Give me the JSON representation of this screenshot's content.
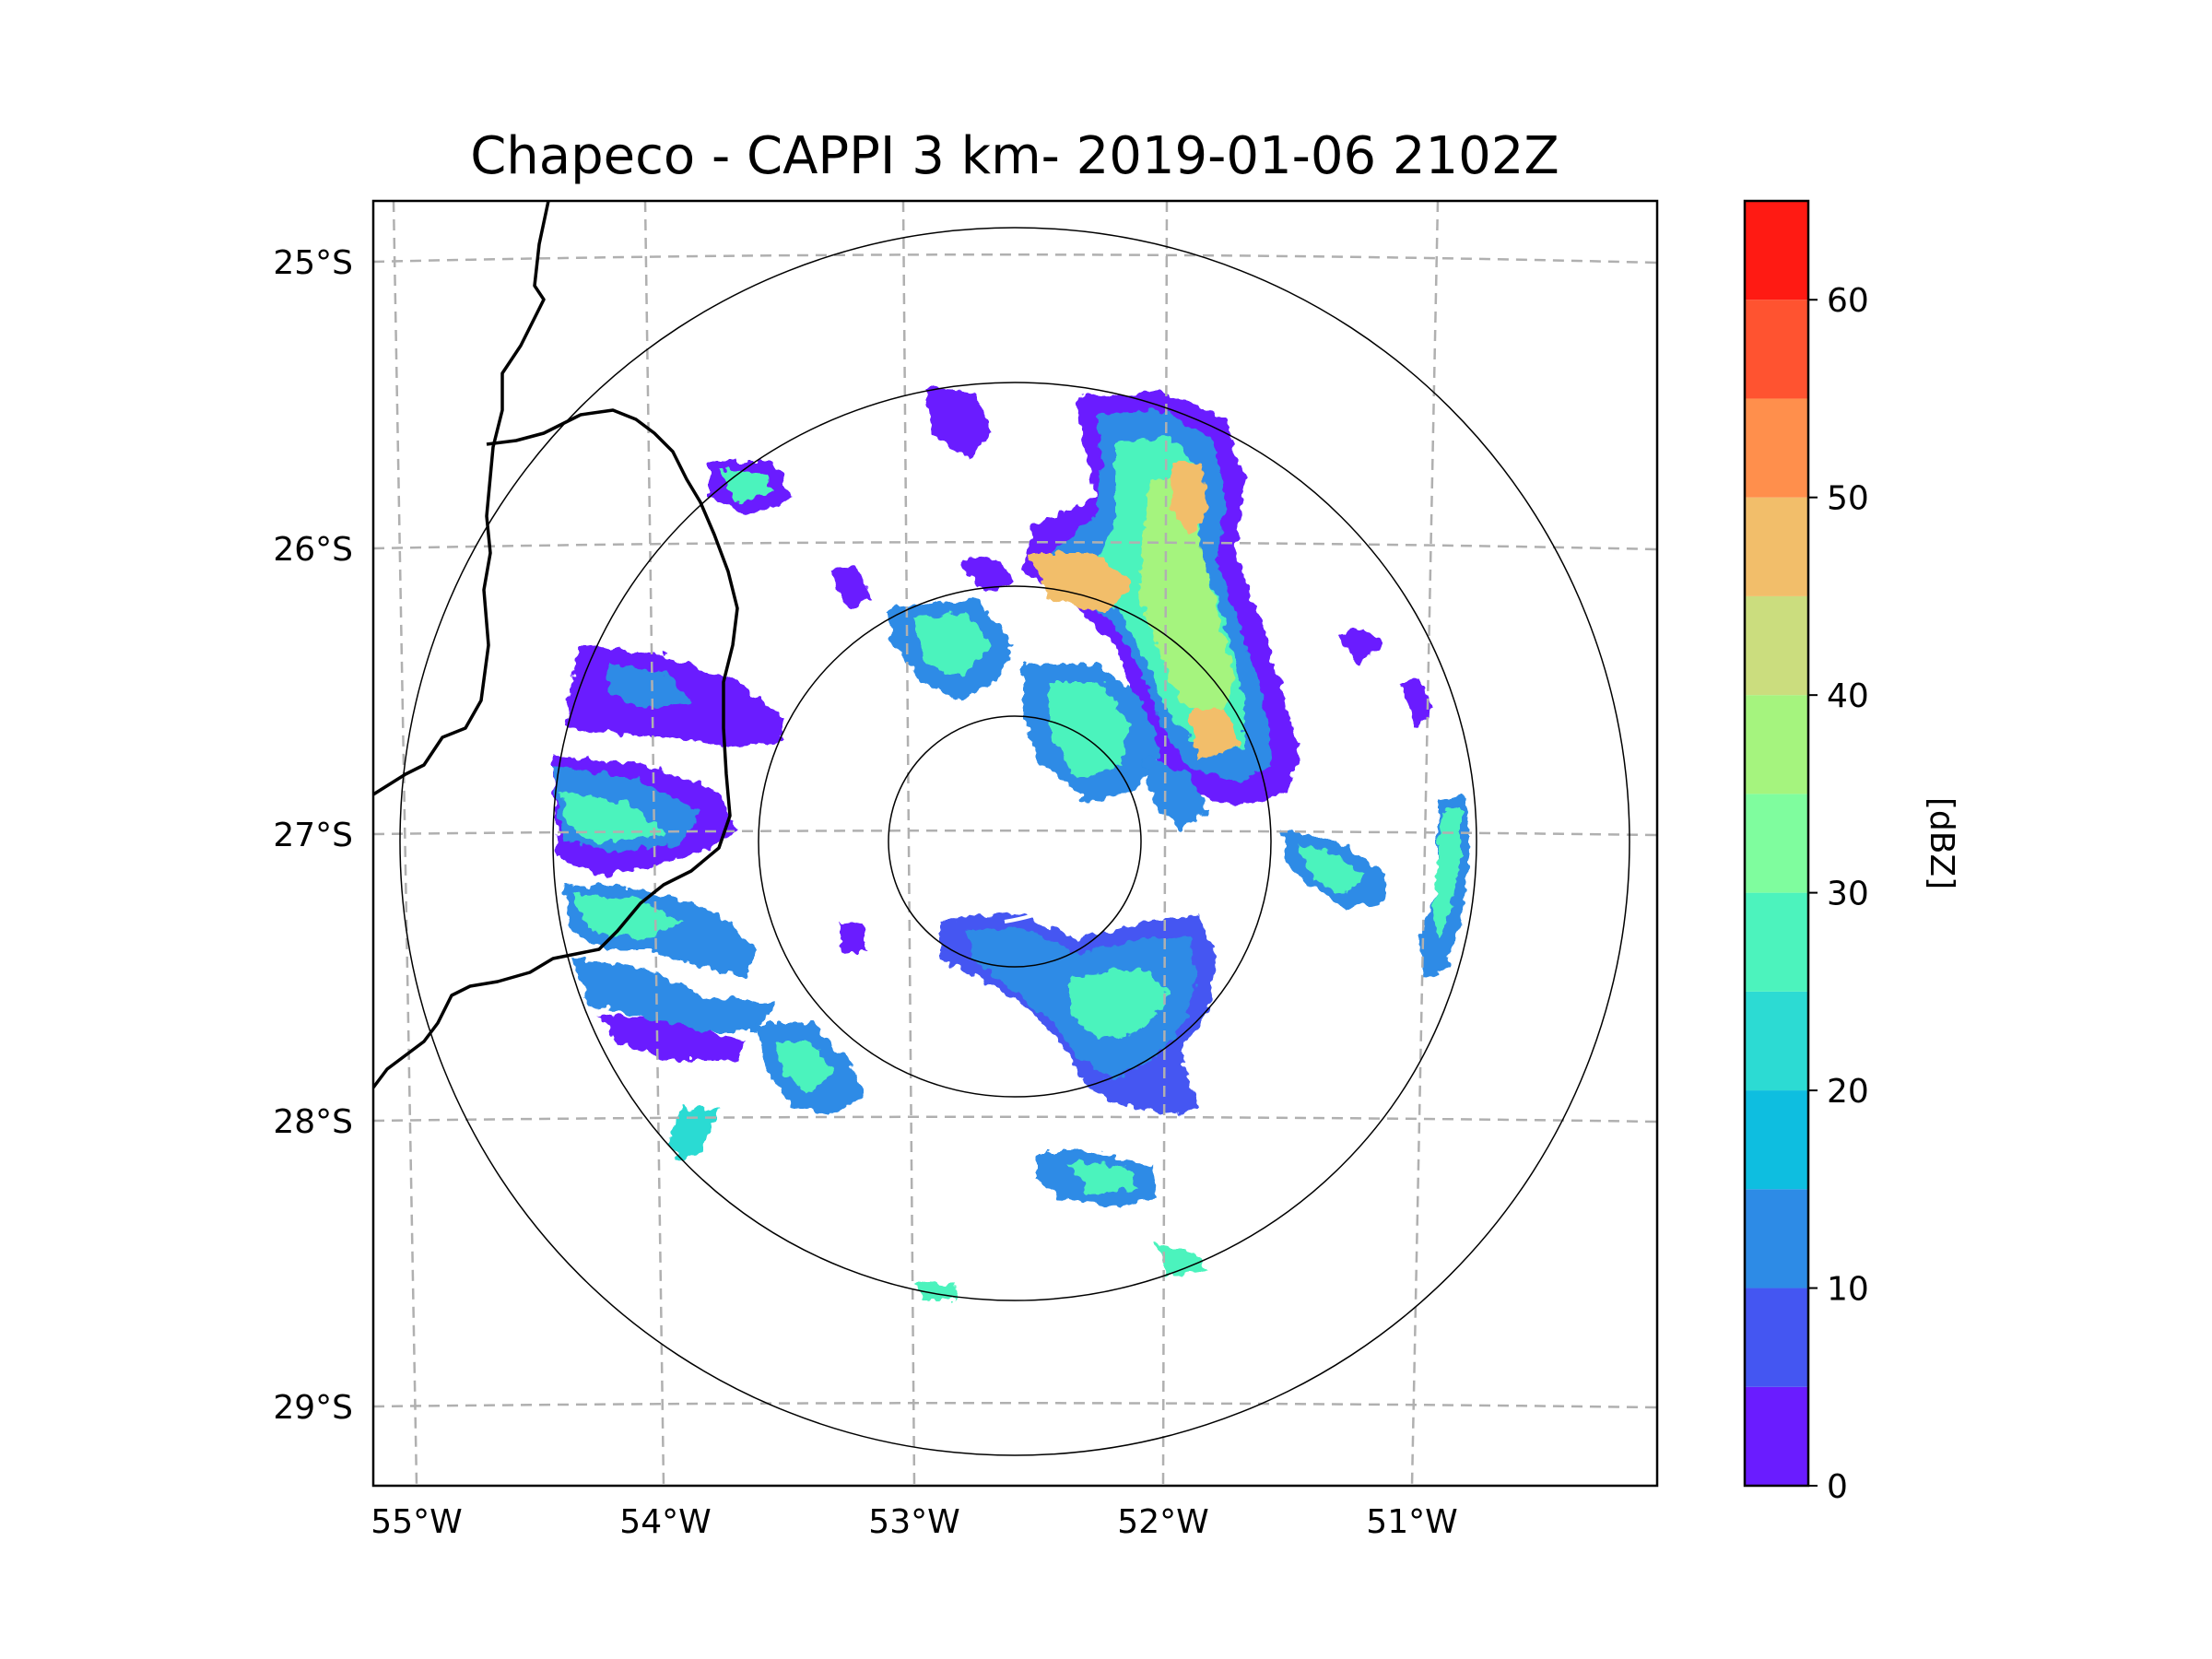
{
  "title": "Chapeco - CAPPI 3 km- 2019-01-06 2102Z",
  "map": {
    "lon_ticks": [
      "55°W",
      "54°W",
      "53°W",
      "52°W",
      "51°W"
    ],
    "lat_ticks": [
      "25°S",
      "26°S",
      "27°S",
      "28°S",
      "29°S"
    ],
    "gridline_style": "dashed",
    "gridline_color": "#b0b0b0",
    "range_rings": 4,
    "features": [
      "state-borders",
      "coastline"
    ]
  },
  "colorbar": {
    "label": "[dBZ]",
    "tick_labels": [
      "0",
      "10",
      "20",
      "30",
      "40",
      "50",
      "60"
    ],
    "min": 0,
    "max": 65,
    "bin_width": 5,
    "colors": [
      "#6a1cff",
      "#4456f2",
      "#2d8be6",
      "#0ebee0",
      "#2cdbd3",
      "#4cf3bd",
      "#7ffd9e",
      "#a5f47e",
      "#cbdd7e",
      "#f2be6a",
      "#ff8f4c",
      "#ff5330",
      "#ff1a13"
    ]
  }
}
